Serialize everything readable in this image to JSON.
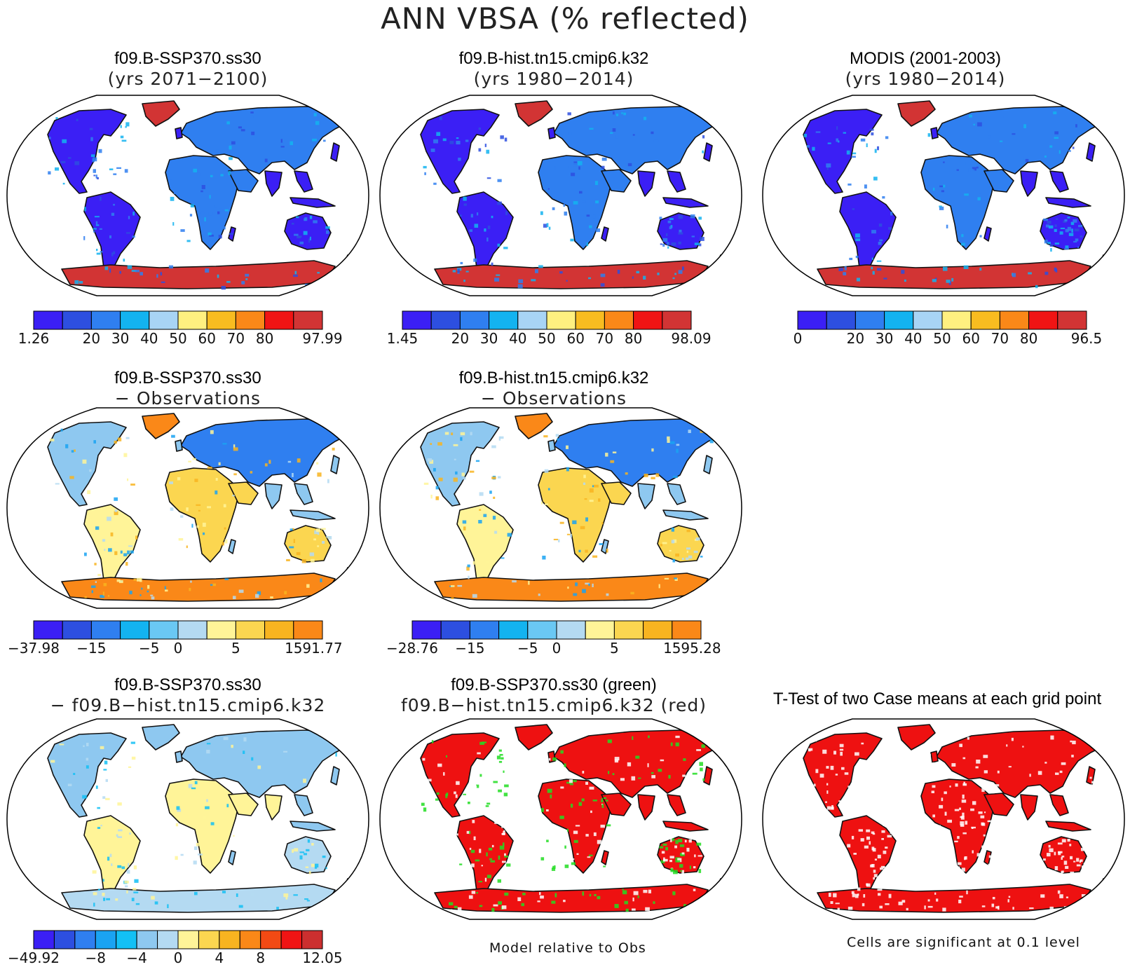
{
  "title": "ANN VBSA (% reflected)",
  "palettes": {
    "abs": [
      "#3b1ff5",
      "#2d4fe0",
      "#2f7ff0",
      "#13b3f0",
      "#a8d4f5",
      "#fff080",
      "#f8bc20",
      "#fa8818",
      "#f01414",
      "#d23434"
    ],
    "diff": [
      "#3b1ff5",
      "#2d4fe0",
      "#2f7ff0",
      "#1aa3f2",
      "#13c0f5",
      "#8ec8f0",
      "#b4daf2",
      "#fff498",
      "#fbd650",
      "#f8b420",
      "#fa8818",
      "#f24a14",
      "#f01414",
      "#cc2f2f"
    ]
  },
  "panels": [
    {
      "id": "p1",
      "title": "f09.B-SSP370.ss30",
      "subtitle": "(yrs 2071−2100)",
      "style": "abs-model",
      "colorbar": {
        "palette": "abs",
        "labels": [
          "1.26",
          "20",
          "30",
          "40",
          "50",
          "60",
          "70",
          "80",
          "97.99"
        ],
        "label_pos": [
          0,
          2,
          3,
          4,
          5,
          6,
          7,
          8,
          10
        ]
      }
    },
    {
      "id": "p2",
      "title": "f09.B-hist.tn15.cmip6.k32",
      "subtitle": "(yrs 1980−2014)",
      "style": "abs-model",
      "colorbar": {
        "palette": "abs",
        "labels": [
          "1.45",
          "20",
          "30",
          "40",
          "50",
          "60",
          "70",
          "80",
          "98.09"
        ],
        "label_pos": [
          0,
          2,
          3,
          4,
          5,
          6,
          7,
          8,
          10
        ]
      }
    },
    {
      "id": "p3",
      "title": "MODIS (2001-2003)",
      "subtitle": "(yrs 1980−2014)",
      "style": "abs-obs",
      "colorbar": {
        "palette": "abs",
        "labels": [
          "0",
          "20",
          "30",
          "40",
          "50",
          "60",
          "70",
          "80",
          "96.5"
        ],
        "label_pos": [
          0,
          2,
          3,
          4,
          5,
          6,
          7,
          8,
          10
        ]
      }
    },
    {
      "id": "p4",
      "title": "f09.B-SSP370.ss30",
      "subtitle": "− Observations",
      "style": "diff-obs",
      "colorbar": {
        "palette": "diff10",
        "labels": [
          "−37.98",
          "−15",
          "−5",
          "0",
          "5",
          "15",
          "91.77"
        ],
        "label_pos": [
          0,
          2,
          4,
          5,
          7,
          9,
          10
        ]
      }
    },
    {
      "id": "p5",
      "title": "f09.B-hist.tn15.cmip6.k32",
      "subtitle": "− Observations",
      "style": "diff-obs",
      "colorbar": {
        "palette": "diff10",
        "labels": [
          "−28.76",
          "−15",
          "−5",
          "0",
          "5",
          "15",
          "95.28"
        ],
        "label_pos": [
          0,
          2,
          4,
          5,
          7,
          9,
          10
        ]
      }
    },
    {
      "id": "p6",
      "title": "f09.B-SSP370.ss30",
      "subtitle": "− f09.B−hist.tn15.cmip6.k32",
      "style": "diff-case",
      "colorbar": {
        "palette": "diff",
        "labels": [
          "−49.92",
          "−8",
          "−4",
          "0",
          "4",
          "8",
          "12.05"
        ],
        "label_pos": [
          0,
          3,
          5,
          7,
          9,
          11,
          14
        ]
      }
    },
    {
      "id": "p7",
      "title": "f09.B-SSP370.ss30 (green)",
      "subtitle": "f09.B−hist.tn15.cmip6.k32 (red)",
      "style": "compare"
    },
    {
      "id": "p8",
      "title": "T-Test of two Case means at each grid point",
      "subtitle": "",
      "style": "ttest"
    }
  ],
  "notes": {
    "model_relative": "Model relative to Obs",
    "significance": "Cells are significant at 0.1 level"
  }
}
